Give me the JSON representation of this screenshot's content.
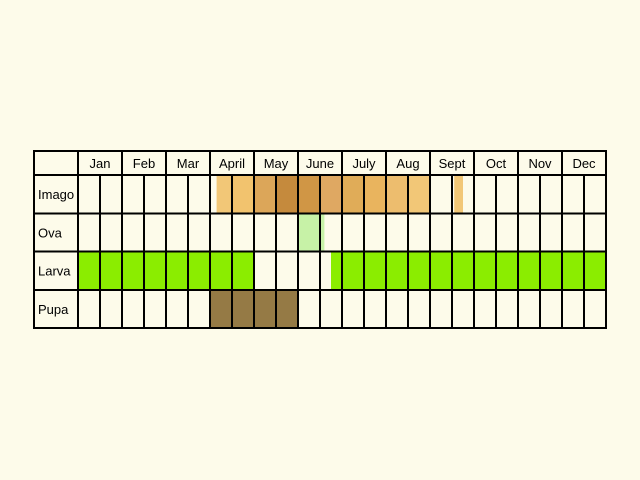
{
  "chart_data": {
    "type": "heatmap",
    "title": "",
    "months": [
      "Jan",
      "Feb",
      "Mar",
      "April",
      "May",
      "June",
      "July",
      "Aug",
      "Sept",
      "Oct",
      "Nov",
      "Dec"
    ],
    "subdivisions_per_month": 2,
    "stages": [
      {
        "name": "Imago",
        "periods": [
          {
            "start": 3.15,
            "end": 3.5,
            "color": "#f2c777"
          },
          {
            "start": 3.5,
            "end": 4.0,
            "color": "#f2c36e"
          },
          {
            "start": 4.0,
            "end": 4.5,
            "color": "#dca659"
          },
          {
            "start": 4.5,
            "end": 5.0,
            "color": "#c58a3d"
          },
          {
            "start": 5.0,
            "end": 5.5,
            "color": "#d09645"
          },
          {
            "start": 5.5,
            "end": 6.0,
            "color": "#dfa862"
          },
          {
            "start": 6.0,
            "end": 6.5,
            "color": "#e0ac58"
          },
          {
            "start": 6.5,
            "end": 7.0,
            "color": "#e9b45e"
          },
          {
            "start": 7.0,
            "end": 7.5,
            "color": "#edbd6e"
          },
          {
            "start": 7.5,
            "end": 8.0,
            "color": "#f2c777"
          },
          {
            "start": 8.55,
            "end": 8.75,
            "color": "#f2c777"
          }
        ]
      },
      {
        "name": "Ova",
        "periods": [
          {
            "start": 5.0,
            "end": 5.6,
            "color": "#c7f2a7"
          }
        ]
      },
      {
        "name": "Larva",
        "periods": [
          {
            "start": 0.0,
            "end": 4.0,
            "color": "#8bed00"
          },
          {
            "start": 5.75,
            "end": 12.0,
            "color": "#8bed00"
          }
        ]
      },
      {
        "name": "Pupa",
        "periods": [
          {
            "start": 3.0,
            "end": 5.0,
            "color": "#957a45"
          }
        ]
      }
    ],
    "colors": {
      "background": "#fdfbea",
      "cell": "#fdfbea",
      "grid": "#000000"
    }
  }
}
